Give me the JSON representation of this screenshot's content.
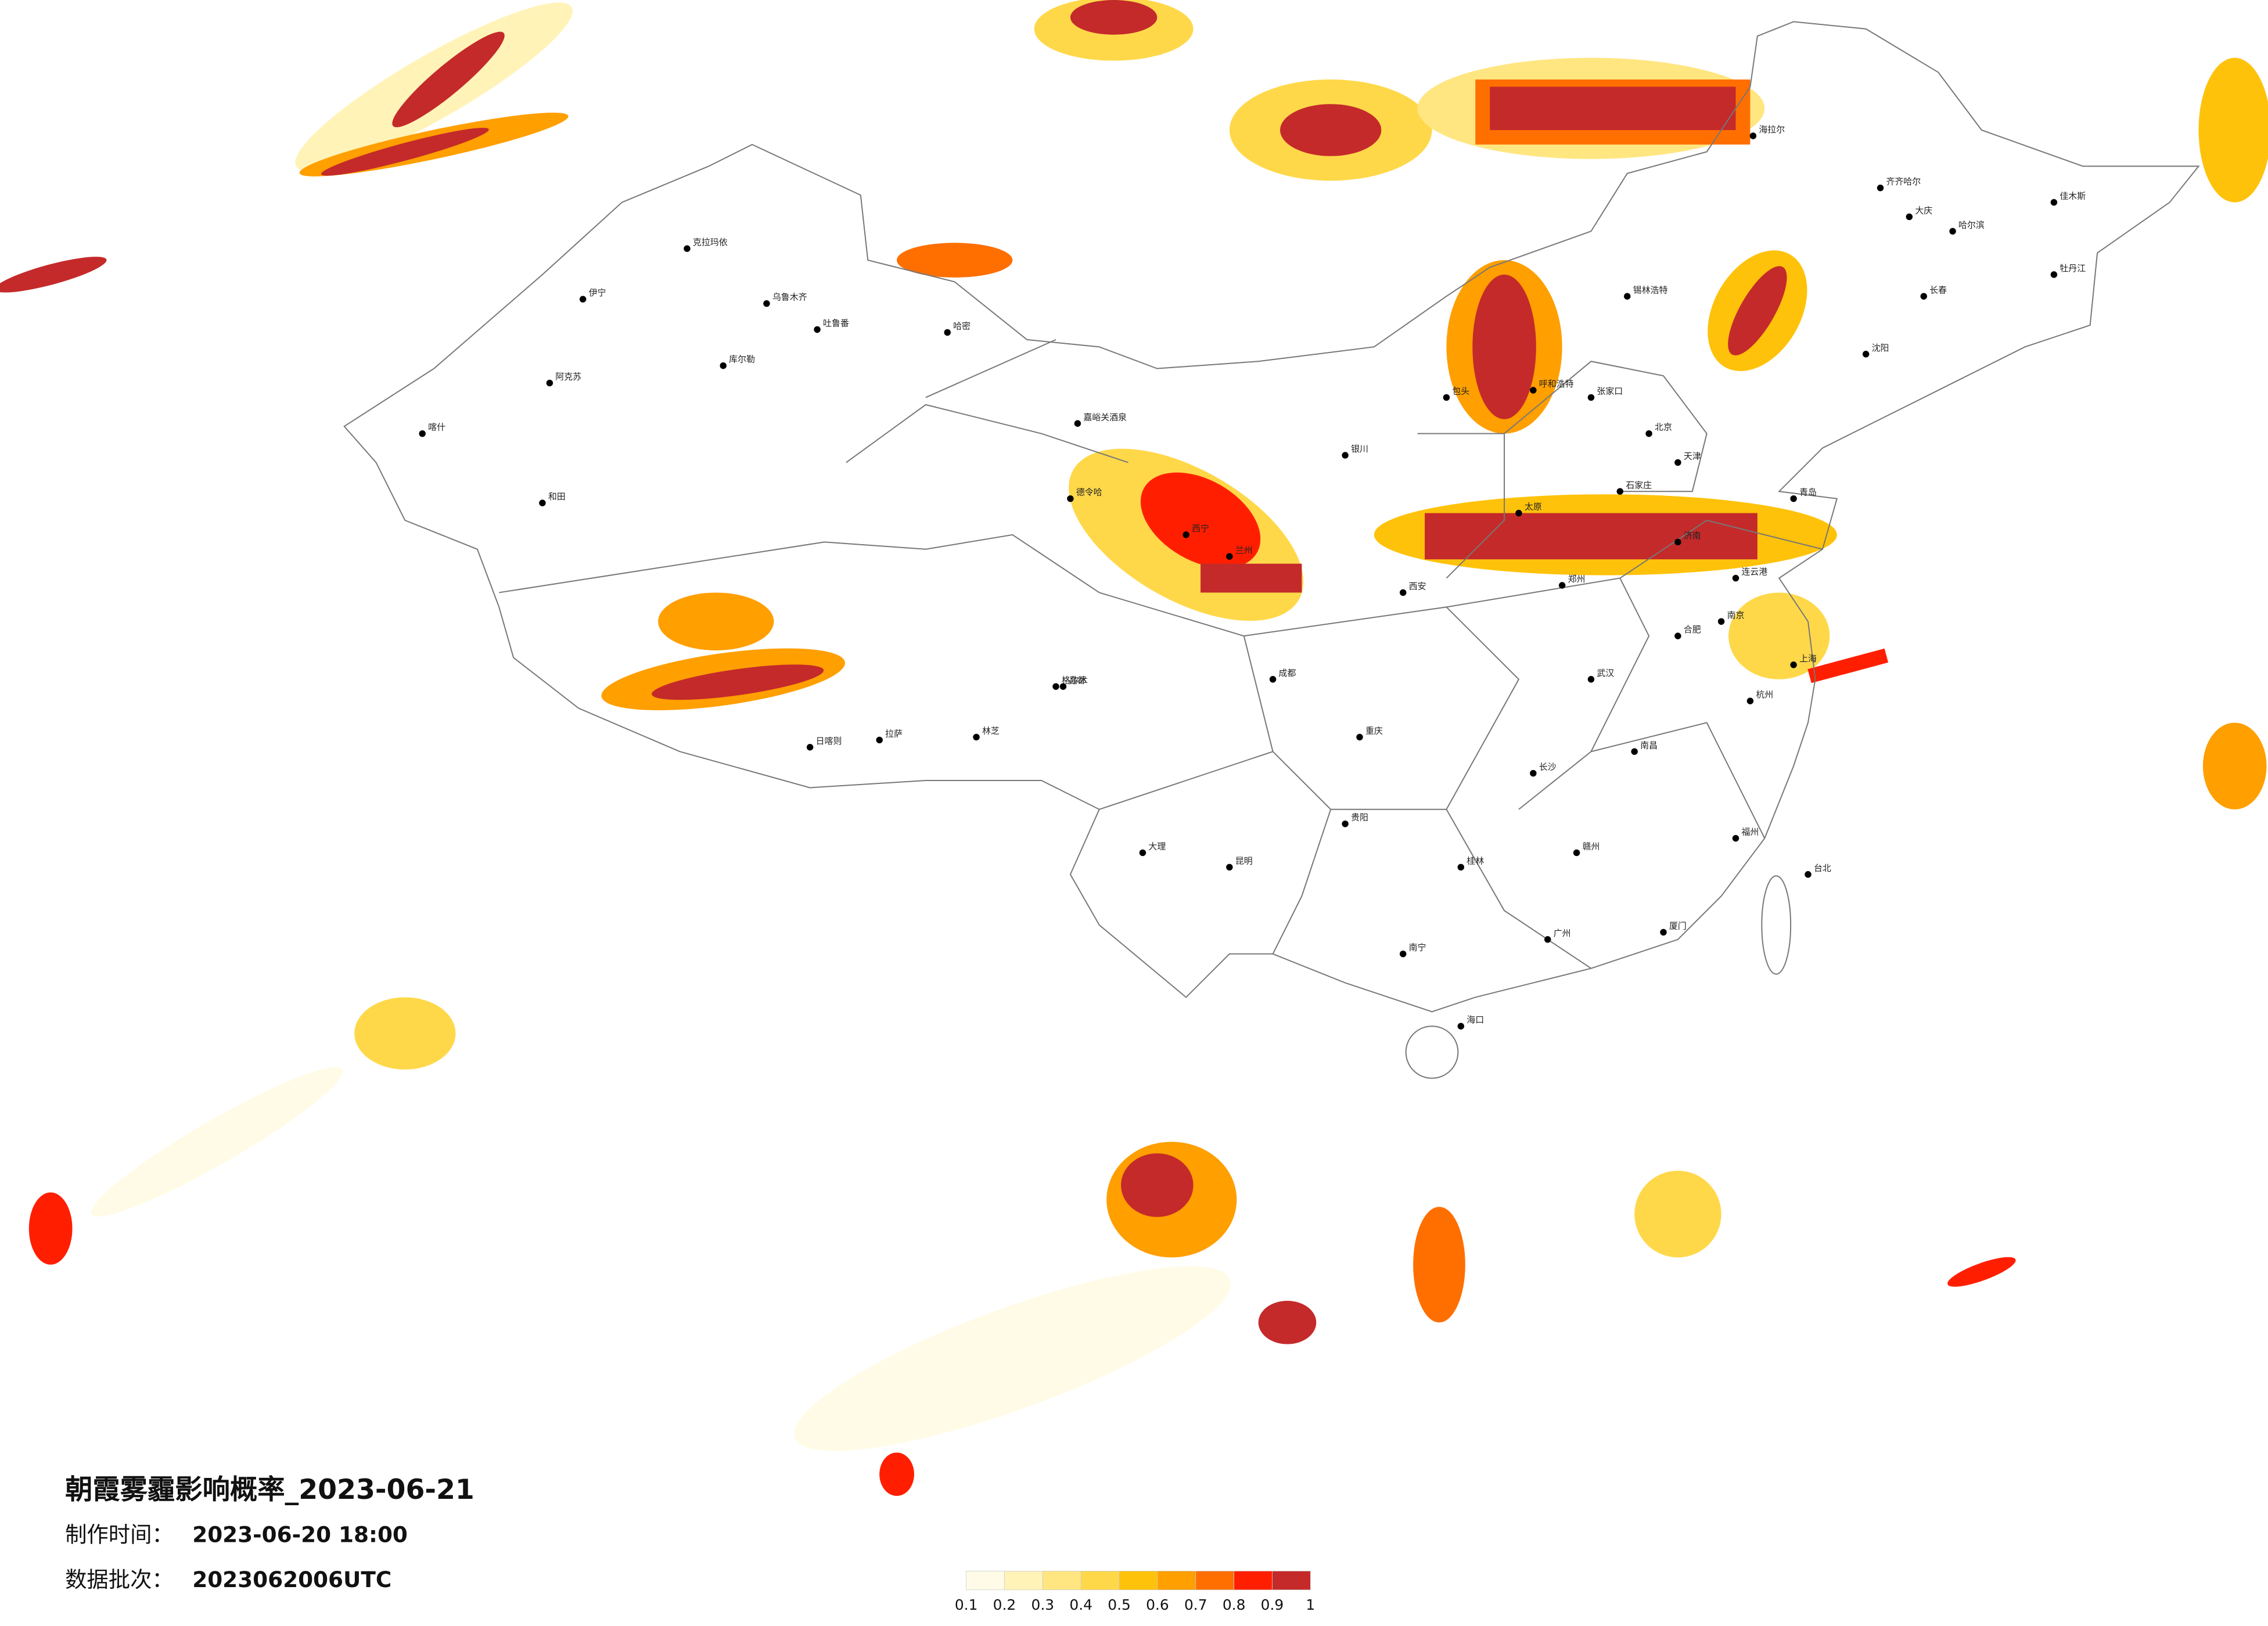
{
  "title": "朝霞雾霾影响概率_2023-06-21",
  "made_time": {
    "label": "制作时间：",
    "value": "2023-06-20 18:00"
  },
  "batch": {
    "label": "数据批次：",
    "value": "2023062006UTC"
  },
  "legend": {
    "ticks": [
      0.1,
      0.2,
      0.3,
      0.4,
      0.5,
      0.6,
      0.7,
      0.8,
      0.9,
      1
    ],
    "colors": [
      "#fffbe6",
      "#fff3b8",
      "#ffe680",
      "#ffd84a",
      "#ffc20a",
      "#ff9f00",
      "#ff6f00",
      "#ff1f00",
      "#c42a2a"
    ]
  },
  "cities": [
    "克拉玛依",
    "乌鲁木齐",
    "吐鲁番",
    "哈密",
    "伊宁",
    "阿克苏",
    "喀什",
    "和田",
    "库尔勒",
    "嘉峪关酒泉",
    "德令哈",
    "格尔木",
    "拉萨",
    "日喀则",
    "林芝",
    "昌都",
    "西宁",
    "兰州",
    "银川",
    "呼和浩特",
    "包头",
    "北京",
    "天津",
    "石家庄",
    "太原",
    "济南",
    "郑州",
    "西安",
    "成都",
    "重庆",
    "武汉",
    "长沙",
    "南昌",
    "合肥",
    "南京",
    "上海",
    "杭州",
    "福州",
    "台北",
    "广州",
    "南宁",
    "海口",
    "昆明",
    "贵阳",
    "哈尔滨",
    "长春",
    "沈阳",
    "大庆",
    "齐齐哈尔",
    "海拉尔",
    "佳木斯",
    "牡丹江",
    "锡林浩特",
    "张家口",
    "青岛",
    "连云港",
    "厦门",
    "桂林",
    "赣州",
    "大理"
  ]
}
